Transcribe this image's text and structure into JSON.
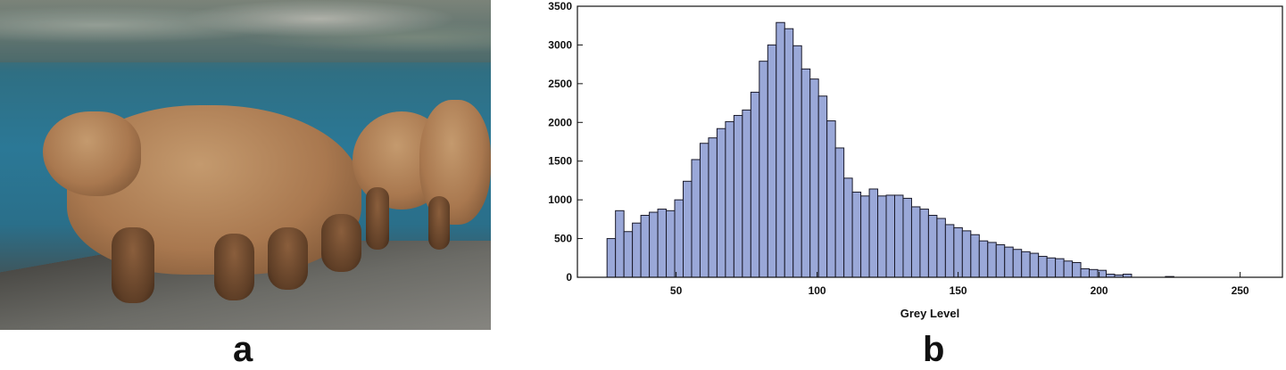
{
  "panels": {
    "a": "a",
    "b": "b"
  },
  "photo": {
    "icon": "bear-photo-icon"
  },
  "chart_data": {
    "type": "bar",
    "title": "",
    "xlabel": "Grey Level",
    "ylabel": "",
    "xlim": [
      15,
      265
    ],
    "ylim": [
      0,
      3500
    ],
    "xticks": [
      50,
      100,
      150,
      200,
      250
    ],
    "yticks": [
      0,
      500,
      1000,
      1500,
      2000,
      2500,
      3000,
      3500
    ],
    "grid": false,
    "bar_color": "#9aa8d8",
    "bin_width": 3,
    "x": [
      27,
      30,
      33,
      36,
      39,
      42,
      45,
      48,
      51,
      54,
      57,
      60,
      63,
      66,
      69,
      72,
      75,
      78,
      81,
      84,
      87,
      90,
      93,
      96,
      99,
      102,
      105,
      108,
      111,
      114,
      117,
      120,
      123,
      126,
      129,
      132,
      135,
      138,
      141,
      144,
      147,
      150,
      153,
      156,
      159,
      162,
      165,
      168,
      171,
      174,
      177,
      180,
      183,
      186,
      189,
      192,
      195,
      198,
      201,
      204,
      207,
      210,
      225
    ],
    "values": [
      500,
      860,
      590,
      700,
      800,
      840,
      880,
      860,
      1000,
      1240,
      1520,
      1730,
      1800,
      1920,
      2010,
      2090,
      2160,
      2390,
      2790,
      3000,
      3290,
      3210,
      2990,
      2690,
      2560,
      2340,
      2020,
      1670,
      1280,
      1100,
      1050,
      1140,
      1050,
      1060,
      1060,
      1020,
      910,
      880,
      800,
      760,
      680,
      640,
      600,
      550,
      470,
      450,
      420,
      390,
      360,
      330,
      310,
      270,
      250,
      240,
      210,
      190,
      110,
      100,
      90,
      40,
      30,
      40,
      10
    ]
  }
}
